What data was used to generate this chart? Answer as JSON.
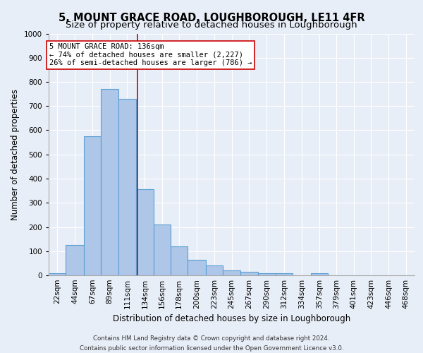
{
  "title": "5, MOUNT GRACE ROAD, LOUGHBOROUGH, LE11 4FR",
  "subtitle": "Size of property relative to detached houses in Loughborough",
  "xlabel": "Distribution of detached houses by size in Loughborough",
  "ylabel": "Number of detached properties",
  "bin_labels": [
    "22sqm",
    "44sqm",
    "67sqm",
    "89sqm",
    "111sqm",
    "134sqm",
    "156sqm",
    "178sqm",
    "200sqm",
    "223sqm",
    "245sqm",
    "267sqm",
    "290sqm",
    "312sqm",
    "334sqm",
    "357sqm",
    "379sqm",
    "401sqm",
    "423sqm",
    "446sqm",
    "468sqm"
  ],
  "bin_edges": [
    22,
    44,
    67,
    89,
    111,
    134,
    156,
    178,
    200,
    223,
    245,
    267,
    290,
    312,
    334,
    357,
    379,
    401,
    423,
    446,
    468,
    490
  ],
  "bar_values": [
    10,
    125,
    575,
    770,
    730,
    355,
    210,
    120,
    65,
    40,
    20,
    15,
    8,
    8,
    0,
    8,
    0,
    0,
    0,
    0,
    0
  ],
  "bar_facecolor": "#aec6e8",
  "bar_edgecolor": "#5a9fd4",
  "bar_linewidth": 0.8,
  "property_size": 136,
  "property_line_color": "#cc0000",
  "annotation_line1": "5 MOUNT GRACE ROAD: 136sqm",
  "annotation_line2": "← 74% of detached houses are smaller (2,227)",
  "annotation_line3": "26% of semi-detached houses are larger (786) →",
  "annotation_boxcolor": "white",
  "annotation_edgecolor": "#cc0000",
  "ylim": [
    0,
    1000
  ],
  "yticks": [
    0,
    100,
    200,
    300,
    400,
    500,
    600,
    700,
    800,
    900,
    1000
  ],
  "background_color": "#e8eef7",
  "axes_background": "#e8eef7",
  "grid_color": "white",
  "title_fontsize": 10.5,
  "subtitle_fontsize": 9.5,
  "xlabel_fontsize": 8.5,
  "ylabel_fontsize": 8.5,
  "tick_fontsize": 7.5,
  "footer_line1": "Contains HM Land Registry data © Crown copyright and database right 2024.",
  "footer_line2": "Contains public sector information licensed under the Open Government Licence v3.0."
}
